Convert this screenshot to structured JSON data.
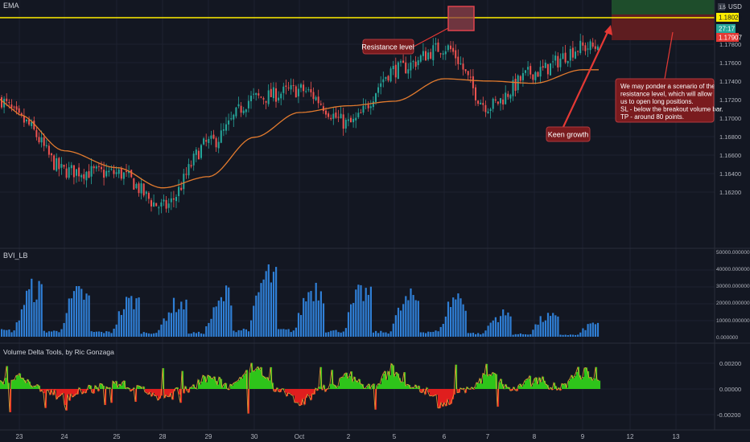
{
  "colors": {
    "background": "#131722",
    "grid": "#1e2230",
    "separator": "#2a2e39",
    "axis_text": "#b2b5be",
    "candle_up": "#26a69a",
    "candle_down": "#ef5350",
    "ema": "#e37b2e",
    "resistance": "#ffee00",
    "volume_bar": "#2f7fd6",
    "delta_pos": "#2ec41a",
    "delta_neg": "#e01e1e",
    "delta_line": "#f3a53a",
    "annotation_bg": "#7a1b1e",
    "annotation_border": "#b33a3e",
    "price_badge_yellow": "#ffee00",
    "price_badge_teal": "#26a69a",
    "price_badge_red": "#e53935",
    "tp_zone": "#1e4d2b",
    "sl_zone": "#5e1d20",
    "arrow": "#e53935"
  },
  "panels": {
    "price": {
      "indicator_label": "EMA",
      "currency": "USD",
      "scale_badge": "1.5",
      "price_badges": [
        {
          "text": "1.18020",
          "kind": "yellow"
        },
        {
          "text": "27:17",
          "kind": "teal"
        },
        {
          "text": "1.17907",
          "kind": "red"
        }
      ]
    },
    "volume": {
      "indicator_label": "BVI_LB"
    },
    "delta": {
      "indicator_label": "Volume Delta Tools, by Ric Gonzaga"
    }
  },
  "annotations": {
    "resistance_label": "Resistance level",
    "growth_label": "Keen growth",
    "scenario_lines": [
      "We may ponder a scenario of the",
      "resistance level, which will allow",
      "us to open long positions.",
      "SL - below the breakout volume bar.",
      "TP - around 80 points."
    ]
  },
  "x_axis": {
    "labels": [
      "23",
      "24",
      "25",
      "28",
      "29",
      "30",
      "Oct",
      "2",
      "5",
      "6",
      "7",
      "8",
      "9",
      "12",
      "13"
    ]
  },
  "chart_data": [
    {
      "type": "candlestick",
      "title": "",
      "x": [
        "23",
        "24",
        "25",
        "28",
        "29",
        "30",
        "Oct",
        "2",
        "5",
        "6",
        "7",
        "8",
        "9"
      ],
      "ylim": [
        1.1612,
        1.1832
      ],
      "y_ticks": [
        "1.17800",
        "1.17600",
        "1.17400",
        "1.17200",
        "1.17000",
        "1.16800",
        "1.16600",
        "1.16400",
        "1.16200"
      ],
      "resistance_level": 1.1802,
      "last_price": 1.17907,
      "close_path": [
        {
          "x": "23",
          "close": 1.1725
        },
        {
          "x": "24",
          "close": 1.168
        },
        {
          "x": "25",
          "close": 1.1678
        },
        {
          "x": "28",
          "close": 1.1648
        },
        {
          "x": "29",
          "close": 1.1705
        },
        {
          "x": "30",
          "close": 1.1745
        },
        {
          "x": "Oct",
          "close": 1.1752
        },
        {
          "x": "2",
          "close": 1.1722
        },
        {
          "x": "5",
          "close": 1.177
        },
        {
          "x": "6",
          "close": 1.179
        },
        {
          "x": "7",
          "close": 1.1738
        },
        {
          "x": "8",
          "close": 1.1768
        },
        {
          "x": "9",
          "close": 1.179
        }
      ],
      "ema_path": [
        {
          "x": "23",
          "value": 1.173
        },
        {
          "x": "24",
          "value": 1.1698
        },
        {
          "x": "25",
          "value": 1.1683
        },
        {
          "x": "28",
          "value": 1.1665
        },
        {
          "x": "29",
          "value": 1.1675
        },
        {
          "x": "30",
          "value": 1.171
        },
        {
          "x": "Oct",
          "value": 1.1732
        },
        {
          "x": "2",
          "value": 1.1738
        },
        {
          "x": "5",
          "value": 1.1742
        },
        {
          "x": "6",
          "value": 1.1762
        },
        {
          "x": "7",
          "value": 1.176
        },
        {
          "x": "8",
          "value": 1.1758
        },
        {
          "x": "9",
          "value": 1.177
        }
      ]
    },
    {
      "type": "bar",
      "title": "",
      "ylim": [
        0,
        50000
      ],
      "y_ticks": [
        "50000.000000",
        "40000.000000",
        "30000.000000",
        "20000.000000",
        "10000.000000",
        "0.000000"
      ],
      "peak_profile": [
        {
          "x": "23",
          "value": 37000
        },
        {
          "x": "24",
          "value": 33000
        },
        {
          "x": "25",
          "value": 28000
        },
        {
          "x": "28",
          "value": 25000
        },
        {
          "x": "29",
          "value": 24000
        },
        {
          "x": "30",
          "value": 49000
        },
        {
          "x": "Oct",
          "value": 38000
        },
        {
          "x": "2",
          "value": 35000
        },
        {
          "x": "5",
          "value": 27000
        },
        {
          "x": "6",
          "value": 34000
        },
        {
          "x": "7",
          "value": 17000
        },
        {
          "x": "8",
          "value": 16000
        },
        {
          "x": "9",
          "value": 11000
        }
      ]
    },
    {
      "type": "area",
      "title": "",
      "ylim": [
        -0.0028,
        0.0028
      ],
      "y_ticks": [
        "0.00200",
        "0.00000",
        "-0.00200"
      ],
      "peak_profile": [
        {
          "x": "23",
          "value": 0.0011
        },
        {
          "x": "24",
          "value": -0.0009
        },
        {
          "x": "25",
          "value": 0.0007
        },
        {
          "x": "28",
          "value": -0.0012
        },
        {
          "x": "29",
          "value": 0.001
        },
        {
          "x": "30",
          "value": 0.0021
        },
        {
          "x": "Oct",
          "value": -0.0013
        },
        {
          "x": "2",
          "value": 0.0012
        },
        {
          "x": "5",
          "value": 0.0019
        },
        {
          "x": "6",
          "value": -0.0017
        },
        {
          "x": "7",
          "value": 0.0015
        },
        {
          "x": "8",
          "value": 0.0009
        },
        {
          "x": "9",
          "value": 0.0016
        }
      ]
    }
  ]
}
